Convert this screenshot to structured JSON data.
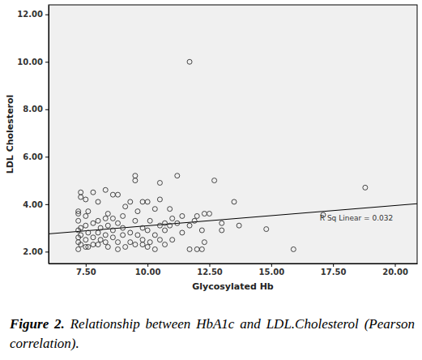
{
  "chart_data": {
    "type": "scatter",
    "x_label": "Glycosylated Hb",
    "y_label": "LDL Cholesterol",
    "caption_label": "Figure 2.",
    "caption": "Relationship between HbA1c and LDL.Cholesterol (Pearson correlation).",
    "annotation": "R Sq Linear = 0.032",
    "marker": "circle",
    "x": [
      7.2,
      7.2,
      7.2,
      7.2,
      7.2,
      7.2,
      7.2,
      7.3,
      7.3,
      7.3,
      7.3,
      7.3,
      7.5,
      7.5,
      7.5,
      7.5,
      7.5,
      7.6,
      7.6,
      7.6,
      7.8,
      7.8,
      7.8,
      7.8,
      8.0,
      8.0,
      8.0,
      8.0,
      8.1,
      8.1,
      8.3,
      8.3,
      8.3,
      8.3,
      8.4,
      8.4,
      8.4,
      8.6,
      8.6,
      8.6,
      8.6,
      8.8,
      8.8,
      8.8,
      8.8,
      9.0,
      9.0,
      9.0,
      9.1,
      9.1,
      9.3,
      9.3,
      9.3,
      9.5,
      9.5,
      9.5,
      9.5,
      9.6,
      9.6,
      9.8,
      9.8,
      9.8,
      9.8,
      10.0,
      10.0,
      10.0,
      10.1,
      10.1,
      10.3,
      10.3,
      10.3,
      10.5,
      10.5,
      10.5,
      10.5,
      10.7,
      10.7,
      10.7,
      10.9,
      10.9,
      11.0,
      11.0,
      11.2,
      11.2,
      11.4,
      11.4,
      11.7,
      11.7,
      11.7,
      11.9,
      12.0,
      12.0,
      12.2,
      12.2,
      12.3,
      12.3,
      12.5,
      12.7,
      13.0,
      13.0,
      13.5,
      13.7,
      14.8,
      15.9,
      17.1,
      18.8
    ],
    "values": [
      2.1,
      2.4,
      2.6,
      2.9,
      3.3,
      3.6,
      3.7,
      2.3,
      2.7,
      3.0,
      4.3,
      4.5,
      2.2,
      2.5,
      3.1,
      3.5,
      4.2,
      2.2,
      2.8,
      3.7,
      2.3,
      2.6,
      3.2,
      4.5,
      2.3,
      2.8,
      3.3,
      4.1,
      2.5,
      3.0,
      2.4,
      2.7,
      3.4,
      4.6,
      2.2,
      3.1,
      3.6,
      2.6,
      2.9,
      3.4,
      4.4,
      2.1,
      2.4,
      3.2,
      4.4,
      2.7,
      3.0,
      3.5,
      2.2,
      3.9,
      2.4,
      2.8,
      4.1,
      2.3,
      3.3,
      5.0,
      5.2,
      2.7,
      3.7,
      2.3,
      2.5,
      3.0,
      4.1,
      2.2,
      2.9,
      4.1,
      2.4,
      3.3,
      2.1,
      2.7,
      3.8,
      2.5,
      3.1,
      4.2,
      4.9,
      2.3,
      2.9,
      3.2,
      3.1,
      3.8,
      2.5,
      3.4,
      3.2,
      5.2,
      2.8,
      3.5,
      2.1,
      3.1,
      10.0,
      3.3,
      2.1,
      3.5,
      2.1,
      2.9,
      2.4,
      3.6,
      3.6,
      5.0,
      2.9,
      3.2,
      4.1,
      3.1,
      2.95,
      2.1,
      3.55,
      4.7
    ],
    "trend_line": {
      "x": [
        6.0,
        20.9
      ],
      "y": [
        2.75,
        4.02
      ]
    },
    "xlim": [
      6.0,
      20.9
    ],
    "ylim": [
      1.5,
      12.4
    ],
    "xticks": [
      {
        "value": 7.5,
        "label": "7.50"
      },
      {
        "value": 10,
        "label": "10.00"
      },
      {
        "value": 12.5,
        "label": "12.50"
      },
      {
        "value": 15,
        "label": "15.00"
      },
      {
        "value": 17.5,
        "label": "17.50"
      },
      {
        "value": 20,
        "label": "20.00"
      }
    ],
    "yticks": [
      {
        "value": 2,
        "label": "2.00"
      },
      {
        "value": 4,
        "label": "4.00"
      },
      {
        "value": 6,
        "label": "6.00"
      },
      {
        "value": 8,
        "label": "8.00"
      },
      {
        "value": 10,
        "label": "10.00"
      },
      {
        "value": 12,
        "label": "12.00"
      }
    ],
    "grid": false
  }
}
